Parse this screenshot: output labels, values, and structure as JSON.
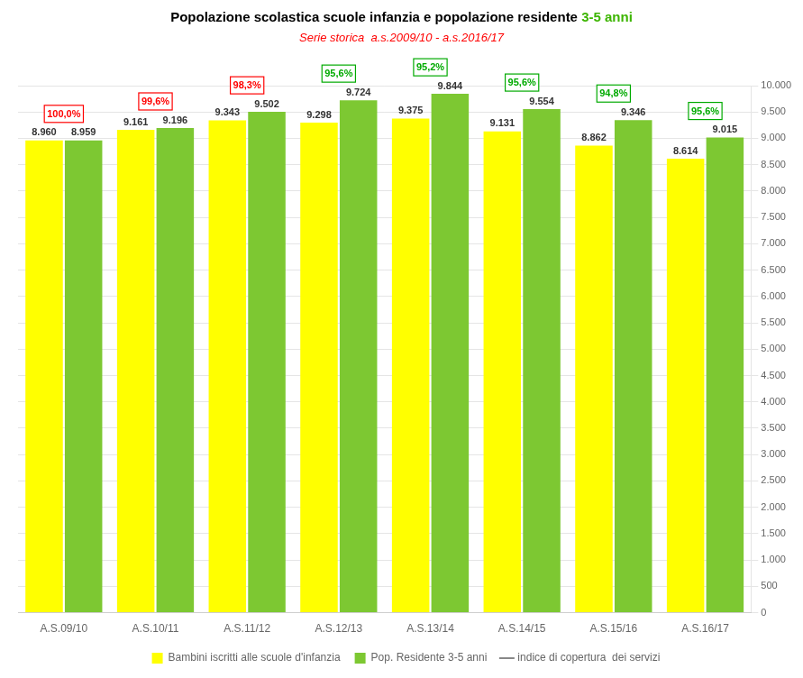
{
  "chart_data": {
    "type": "bar",
    "title": [
      {
        "text": "Popolazione scolastica scuole infanzia e popolazione residente ",
        "color": "#000000"
      },
      {
        "text": "3-5 anni",
        "color": "#3CB500"
      }
    ],
    "subtitle": {
      "text": "Serie storica  a.s.2009/10 - a.s.2016/17",
      "color": "#FF0000"
    },
    "categories": [
      "A.S.09/10",
      "A.S.10/11",
      "A.S.11/12",
      "A.S.12/13",
      "A.S.13/14",
      "A.S.14/15",
      "A.S.15/16",
      "A.S.16/17"
    ],
    "series": [
      {
        "name": "Bambini iscritti alle scuole d'infanzia",
        "color": "#FFFF00",
        "values": [
          8960,
          9161,
          9343,
          9298,
          9375,
          9131,
          8862,
          8614
        ],
        "value_labels": [
          "8.960",
          "9.161",
          "9.343",
          "9.298",
          "9.375",
          "9.131",
          "8.862",
          "8.614"
        ]
      },
      {
        "name": "Pop. Residente 3-5 anni",
        "color": "#7DC832",
        "values": [
          8959,
          9196,
          9502,
          9724,
          9844,
          9554,
          9346,
          9015
        ],
        "value_labels": [
          "8.959",
          "9.196",
          "9.502",
          "9.724",
          "9.844",
          "9.554",
          "9.346",
          "9.015"
        ]
      },
      {
        "name": "indice di copertura  dei servizi",
        "type": "line",
        "color": "#888888",
        "line_style": "solid",
        "values": [
          null,
          null,
          null,
          null,
          null,
          null,
          null,
          null
        ]
      }
    ],
    "annotations": [
      {
        "category": "A.S.09/10",
        "text": "100,0%",
        "color": "#FF0000"
      },
      {
        "category": "A.S.10/11",
        "text": "99,6%",
        "color": "#FF0000"
      },
      {
        "category": "A.S.11/12",
        "text": "98,3%",
        "color": "#FF0000"
      },
      {
        "category": "A.S.12/13",
        "text": "95,6%",
        "color": "#00AA00"
      },
      {
        "category": "A.S.13/14",
        "text": "95,2%",
        "color": "#00AA00"
      },
      {
        "category": "A.S.14/15",
        "text": "95,6%",
        "color": "#00AA00"
      },
      {
        "category": "A.S.15/16",
        "text": "94,8%",
        "color": "#00AA00"
      },
      {
        "category": "A.S.16/17",
        "text": "95,6%",
        "color": "#00AA00"
      }
    ],
    "ylim": [
      0,
      10000
    ],
    "yticks": [
      0,
      500,
      {
        "value": 1000,
        "label": "1.000"
      },
      {
        "value": 1500,
        "label": "1.500"
      },
      {
        "value": 2000,
        "label": "2.000"
      },
      {
        "value": 2500,
        "label": "2.500"
      },
      {
        "value": 3000,
        "label": "3.000"
      },
      {
        "value": 3500,
        "label": "3.500"
      },
      {
        "value": 4000,
        "label": "4.000"
      },
      {
        "value": 4500,
        "label": "4.500"
      },
      {
        "value": 5000,
        "label": "5.000"
      },
      {
        "value": 5500,
        "label": "5.500"
      },
      {
        "value": 6000,
        "label": "6.000"
      },
      {
        "value": 6500,
        "label": "6.500"
      },
      {
        "value": 7000,
        "label": "7.000"
      },
      {
        "value": 7500,
        "label": "7.500"
      },
      {
        "value": 8000,
        "label": "8.000"
      },
      {
        "value": 8500,
        "label": "8.500"
      },
      {
        "value": 9000,
        "label": "9.000"
      },
      {
        "value": 9500,
        "label": "9.500"
      },
      {
        "value": 10000,
        "label": "10.000"
      }
    ],
    "grid": true,
    "legend": "bottom",
    "data_labels": true
  }
}
